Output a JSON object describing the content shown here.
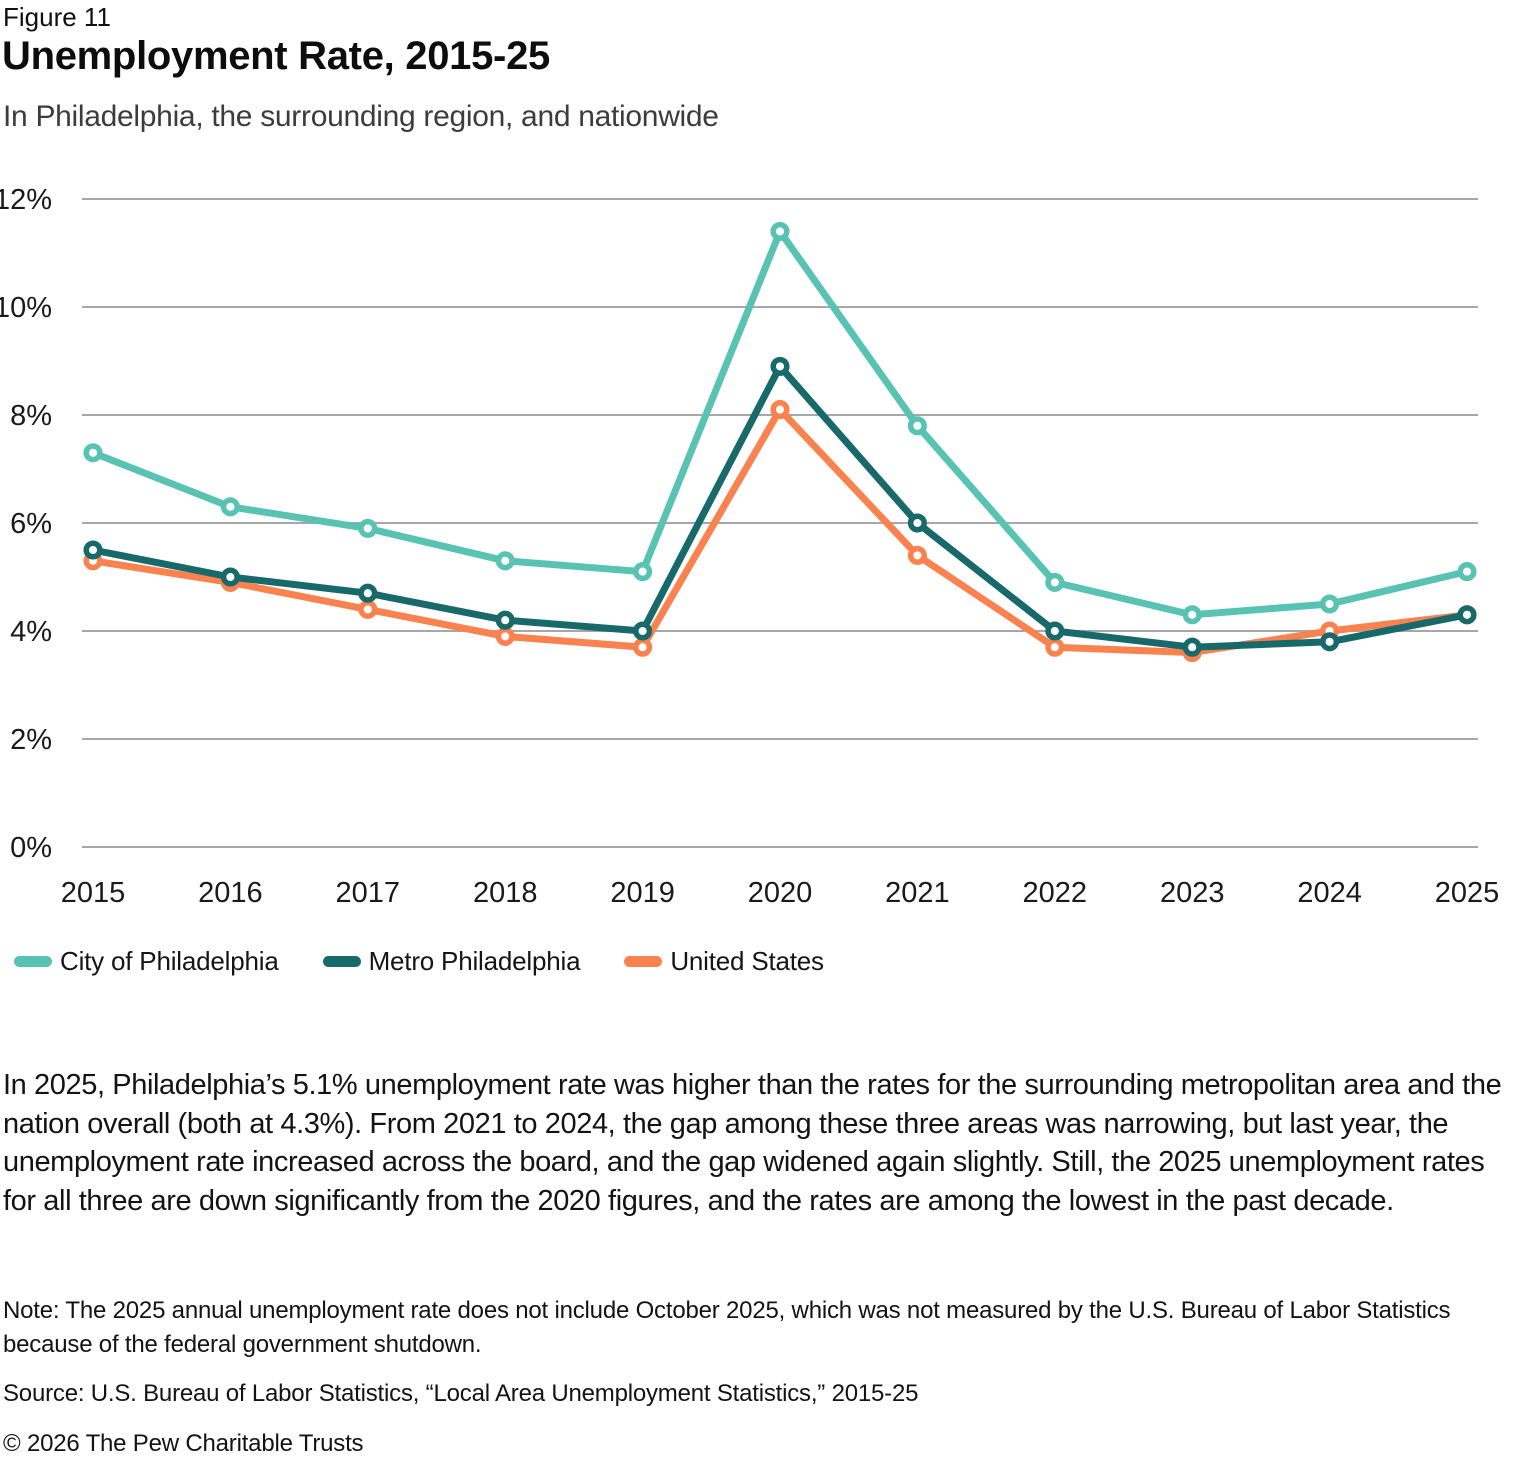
{
  "header": {
    "figure_label": "Figure 11",
    "title": "Unemployment Rate, 2015-25",
    "subtitle": "In Philadelphia, the surrounding region, and nationwide"
  },
  "chart_data": {
    "type": "line",
    "x": [
      2015,
      2016,
      2017,
      2018,
      2019,
      2020,
      2021,
      2022,
      2023,
      2024,
      2025
    ],
    "series": [
      {
        "name": "City of Philadelphia",
        "color": "#58C3B3",
        "values": [
          7.3,
          6.3,
          5.9,
          5.3,
          5.1,
          11.4,
          7.8,
          4.9,
          4.3,
          4.5,
          5.1
        ]
      },
      {
        "name": "Metro Philadelphia",
        "color": "#17696A",
        "values": [
          5.5,
          5.0,
          4.7,
          4.2,
          4.0,
          8.9,
          6.0,
          4.0,
          3.7,
          3.8,
          4.3
        ]
      },
      {
        "name": "United States",
        "color": "#F9824F",
        "values": [
          5.3,
          4.9,
          4.4,
          3.9,
          3.7,
          8.1,
          5.4,
          3.7,
          3.6,
          4.0,
          4.3
        ]
      }
    ],
    "ylim": [
      0,
      12
    ],
    "ytick_step": 2,
    "ytick_suffix": "%",
    "grid": true,
    "legend_position": "bottom",
    "marker": "open-circle",
    "grid_color": "#A7A7A7"
  },
  "body": {
    "paragraph": "In 2025, Philadelphia’s 5.1% unemployment rate was higher than the rates for the surrounding metropolitan area and the nation overall (both at 4.3%). From 2021 to 2024, the gap among these three areas was narrowing, but last year, the unemployment rate increased across the board, and the gap widened again slightly. Still, the 2025 unemployment rates for all three are down significantly from the 2020 figures, and the rates are among the lowest in the past decade."
  },
  "footer": {
    "note": "Note: The 2025 annual unemployment rate does not include October 2025, which was not measured by the U.S. Bureau of Labor Statistics because of the federal government shutdown.",
    "source": "Source: U.S. Bureau of Labor Statistics, “Local Area Unemployment Statistics,” 2015-25",
    "copyright": "© 2026 The Pew Charitable Trusts"
  }
}
